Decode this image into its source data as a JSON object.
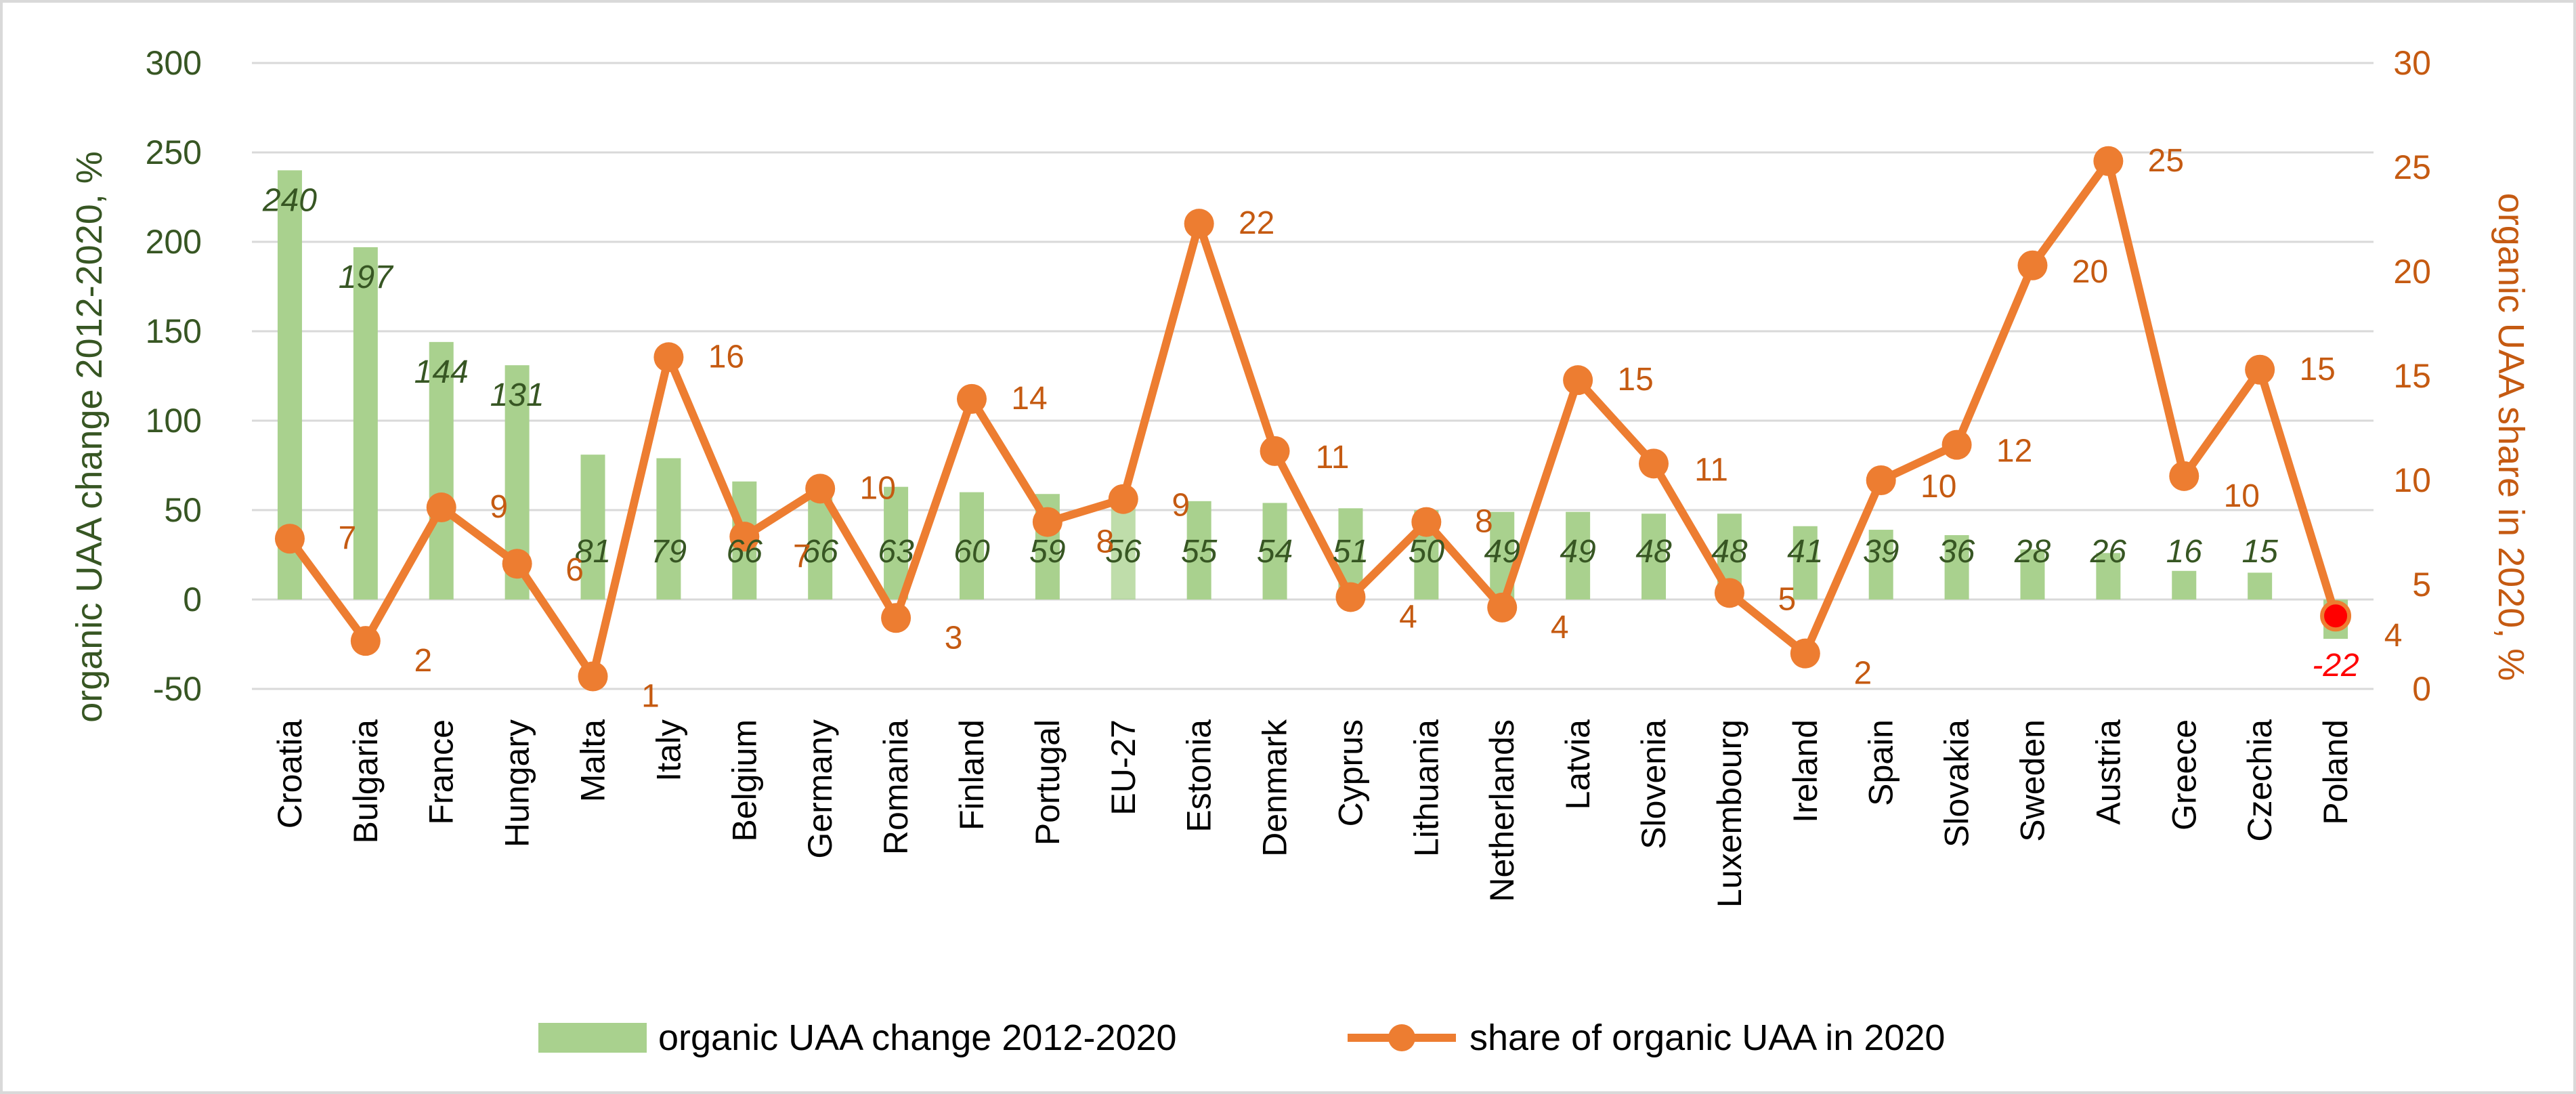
{
  "chart_data": {
    "type": "bar",
    "categories": [
      "Croatia",
      "Bulgaria",
      "France",
      "Hungary",
      "Malta",
      "Italy",
      "Belgium",
      "Germany",
      "Romania",
      "Finland",
      "Portugal",
      "EU-27",
      "Estonia",
      "Denmark",
      "Cyprus",
      "Lithuania",
      "Netherlands",
      "Latvia",
      "Slovenia",
      "Luxembourg",
      "Ireland",
      "Spain",
      "Slovakia",
      "Sweden",
      "Austria",
      "Greece",
      "Czechia",
      "Poland"
    ],
    "series": [
      {
        "name": "organic UAA change 2012-2020",
        "type": "bar",
        "axis": "left",
        "color": "#a9d18e",
        "values": [
          240,
          197,
          144,
          131,
          81,
          79,
          66,
          66,
          63,
          60,
          59,
          56,
          55,
          54,
          51,
          50,
          49,
          49,
          48,
          48,
          41,
          39,
          36,
          28,
          26,
          16,
          15,
          -22
        ],
        "labels": [
          "240",
          "197",
          "144",
          "131",
          "81",
          "79",
          "66",
          "66",
          "63",
          "60",
          "59",
          "56",
          "55",
          "54",
          "51",
          "50",
          "49",
          "49",
          "48",
          "48",
          "41",
          "39",
          "36",
          "28",
          "26",
          "16",
          "15",
          "-22"
        ]
      },
      {
        "name": "share of organic UAA in 2020",
        "type": "line",
        "axis": "right",
        "color": "#ed7d31",
        "values": [
          7.2,
          2.3,
          8.7,
          6.0,
          0.6,
          15.9,
          7.3,
          9.6,
          3.4,
          13.9,
          8.0,
          9.1,
          22.3,
          11.4,
          4.4,
          8.0,
          3.9,
          14.8,
          10.8,
          4.6,
          1.7,
          10.0,
          11.7,
          20.3,
          25.3,
          10.2,
          15.3,
          3.5
        ],
        "labels": [
          "7",
          "2",
          "9",
          "6",
          "1",
          "16",
          "7",
          "10",
          "3",
          "14",
          "8",
          "9",
          "22",
          "11",
          "4",
          "8",
          "4",
          "15",
          "11",
          "5",
          "2",
          "10",
          "12",
          "20",
          "25",
          "10",
          "15",
          "4"
        ]
      }
    ],
    "left_axis": {
      "label": "organic UAA change 2012-2020, %",
      "min": -50,
      "max": 300,
      "step": 50
    },
    "right_axis": {
      "label": "organic UAA  share in 2020, %",
      "min": 0,
      "max": 30,
      "step": 5
    },
    "grid": true,
    "legend_position": "bottom",
    "highlight": {
      "category": "Poland",
      "marker_color": "#ff0000"
    }
  }
}
